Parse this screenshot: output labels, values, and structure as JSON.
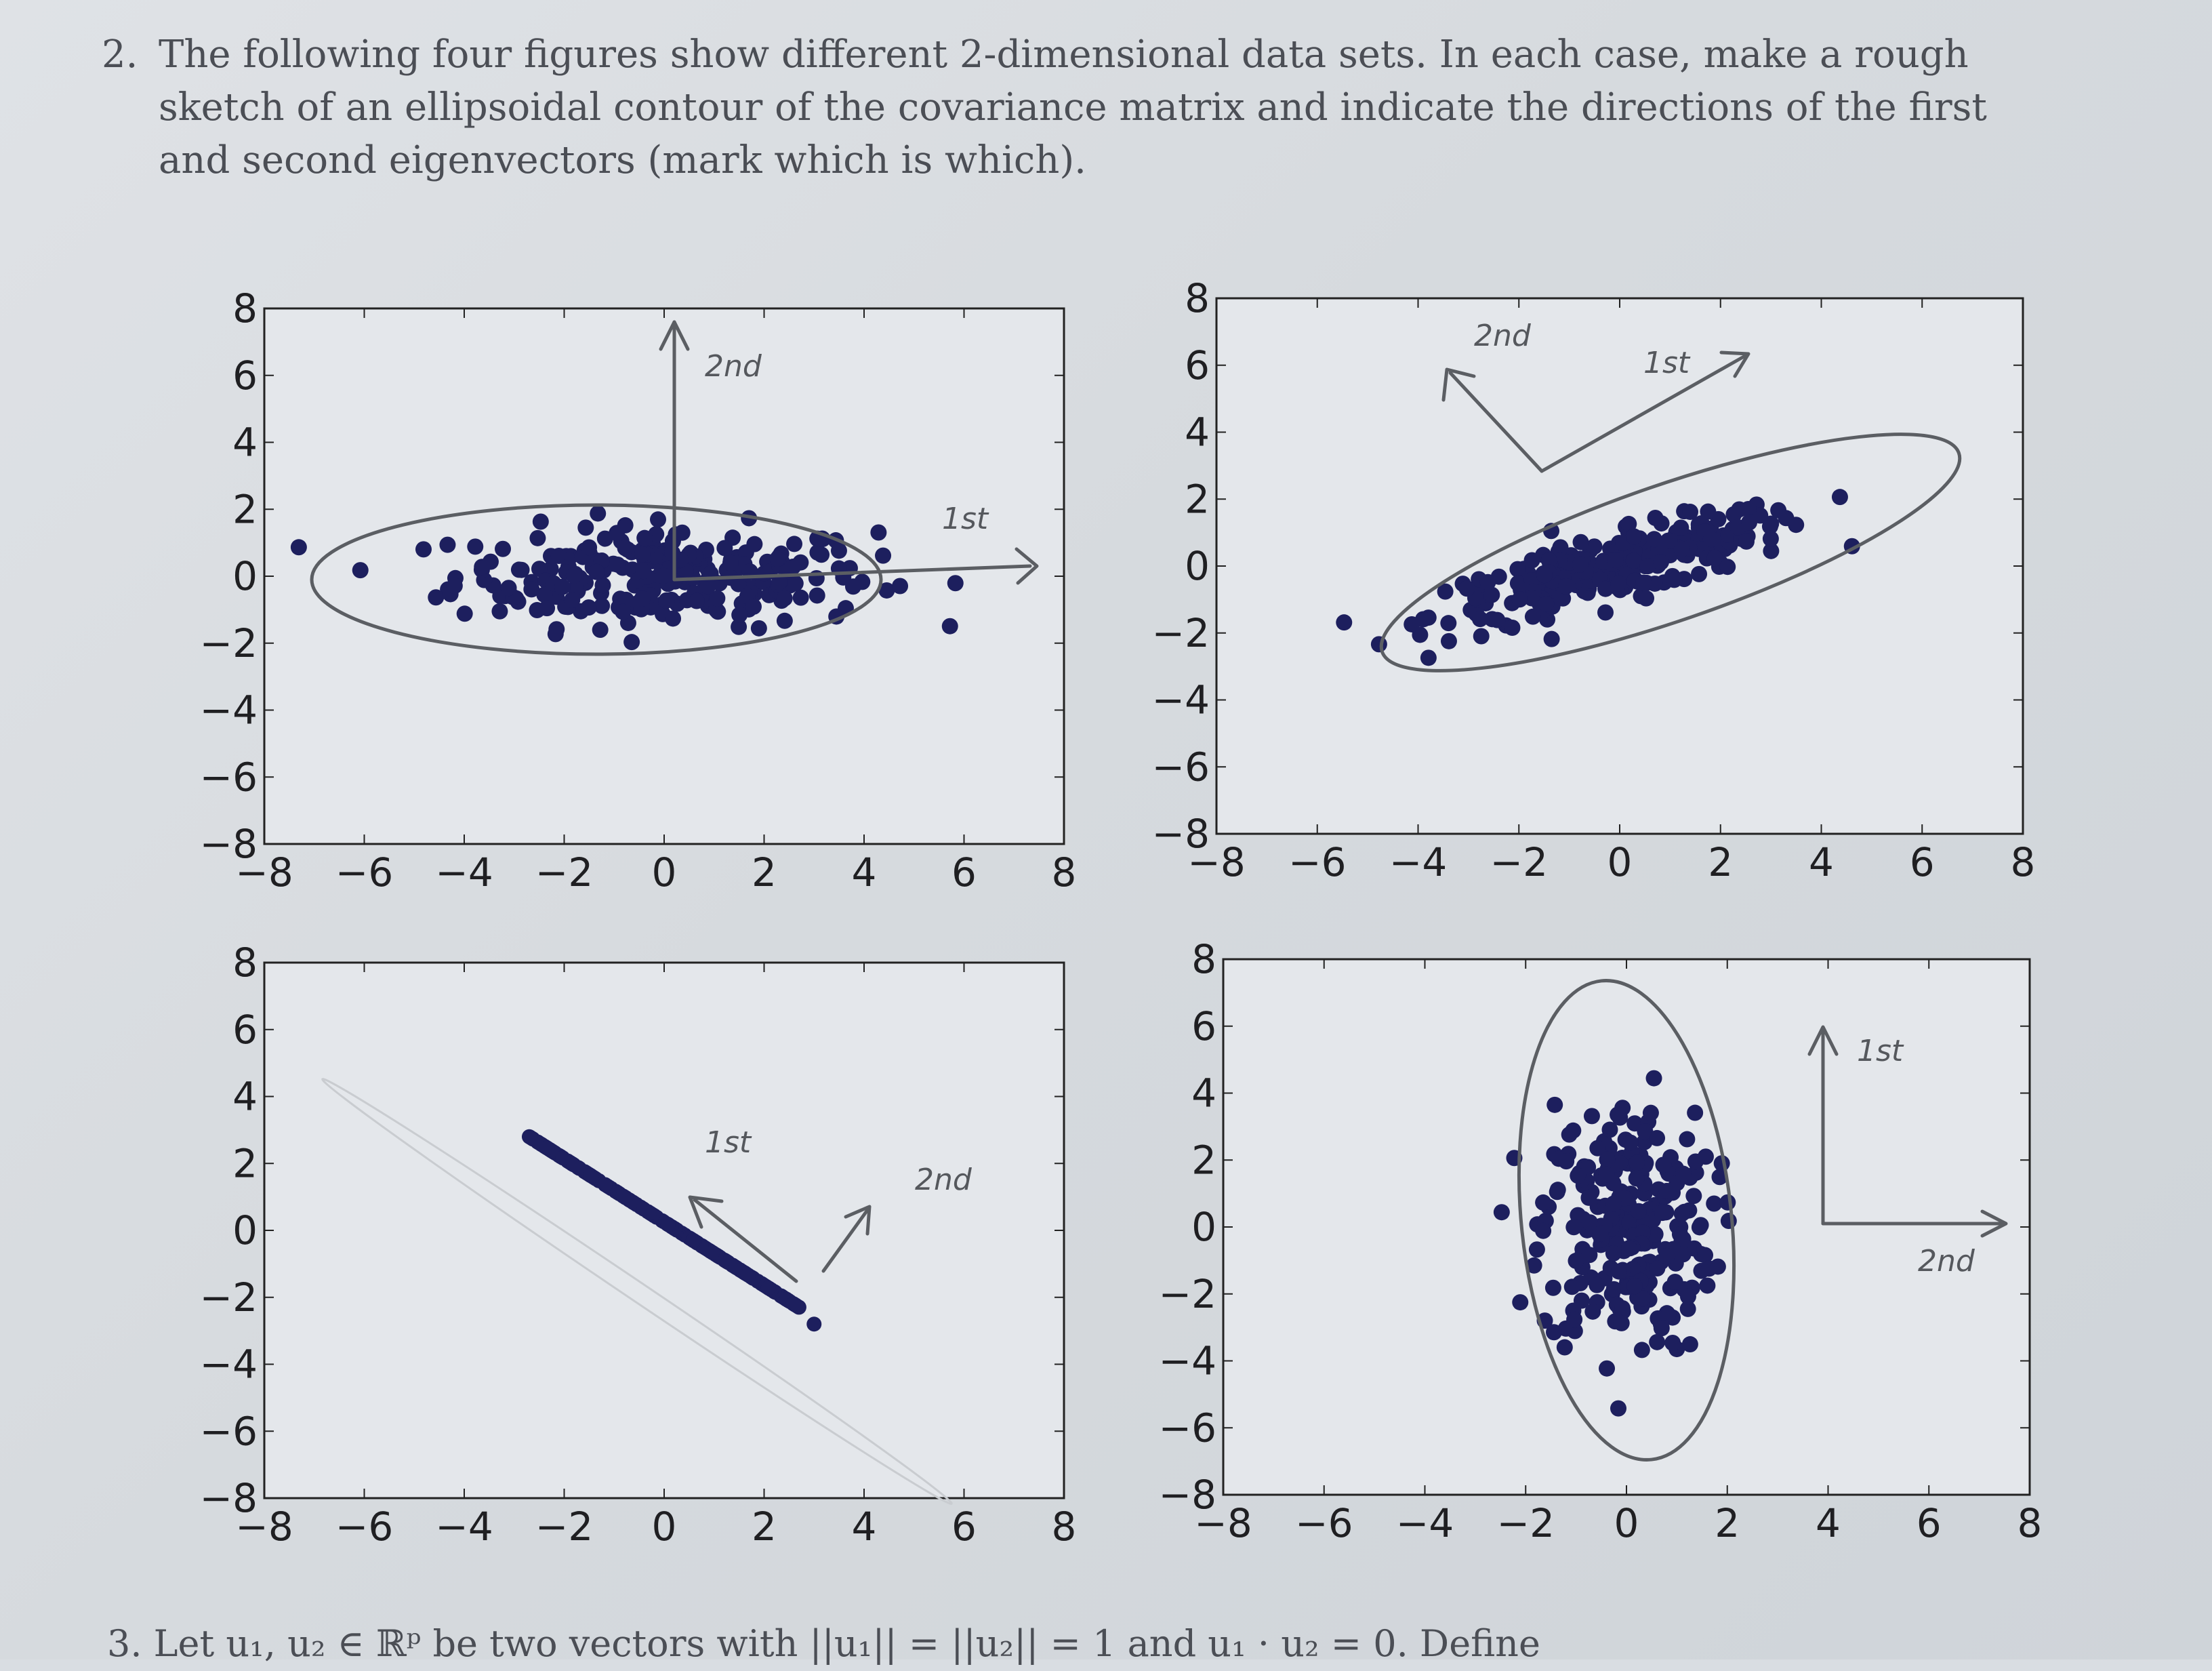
{
  "problem": {
    "number": "2.",
    "text": "The following four figures show different 2-dimensional data sets. In each case, make a rough sketch of an ellipsoidal contour of the covariance matrix and indicate the directions of the first and second eigenvectors (mark which is which)."
  },
  "next_problem_text": "3. Let u₁, u₂ ∈ ℝᵖ be two vectors with ||u₁|| = ||u₂|| = 1 and u₁ · u₂ = 0. Define",
  "colors": {
    "points": "#1d1f5e",
    "pencil": "#5b5e63",
    "paper": "#dfe2e6"
  },
  "chart_data": [
    {
      "type": "scatter",
      "xlim": [
        -8,
        8
      ],
      "ylim": [
        -8,
        8
      ],
      "xticks": [
        "−8",
        "−6",
        "−4",
        "−2",
        "0",
        "2",
        "4",
        "6",
        "8"
      ],
      "yticks": [
        "8",
        "6",
        "4",
        "2",
        "0",
        "−2",
        "−4",
        "−6",
        "−8"
      ],
      "distribution": "wide horizontal cloud, long axis along x",
      "annotations": {
        "first": "1st",
        "second": "2nd"
      }
    },
    {
      "type": "scatter",
      "xlim": [
        -8,
        8
      ],
      "ylim": [
        -8,
        8
      ],
      "xticks": [
        "−8",
        "−6",
        "−4",
        "−2",
        "0",
        "2",
        "4",
        "6",
        "8"
      ],
      "yticks": [
        "8",
        "6",
        "4",
        "2",
        "0",
        "−2",
        "−4",
        "−6",
        "−8"
      ],
      "distribution": "elongated cloud tilted up-right",
      "annotations": {
        "first": "1st",
        "second": "2nd"
      }
    },
    {
      "type": "scatter",
      "xlim": [
        -8,
        8
      ],
      "ylim": [
        -8,
        8
      ],
      "xticks": [
        "−8",
        "−6",
        "−4",
        "−2",
        "0",
        "2",
        "4",
        "6",
        "8"
      ],
      "yticks": [
        "8",
        "6",
        "4",
        "2",
        "0",
        "−2",
        "−4",
        "−6",
        "−8"
      ],
      "distribution": "points on a line from (-2.7, 2.8) to (2.7, -2.3)",
      "annotations": {
        "first": "1st",
        "second": "2nd"
      }
    },
    {
      "type": "scatter",
      "xlim": [
        -8,
        8
      ],
      "ylim": [
        -8,
        8
      ],
      "xticks": [
        "−8",
        "−6",
        "−4",
        "−2",
        "0",
        "2",
        "4",
        "6",
        "8"
      ],
      "yticks": [
        "8",
        "6",
        "4",
        "2",
        "0",
        "−2",
        "−4",
        "−6",
        "−8"
      ],
      "distribution": "vertical cloud, long axis along y",
      "annotations": {
        "first": "1st",
        "second": "2nd"
      }
    }
  ]
}
